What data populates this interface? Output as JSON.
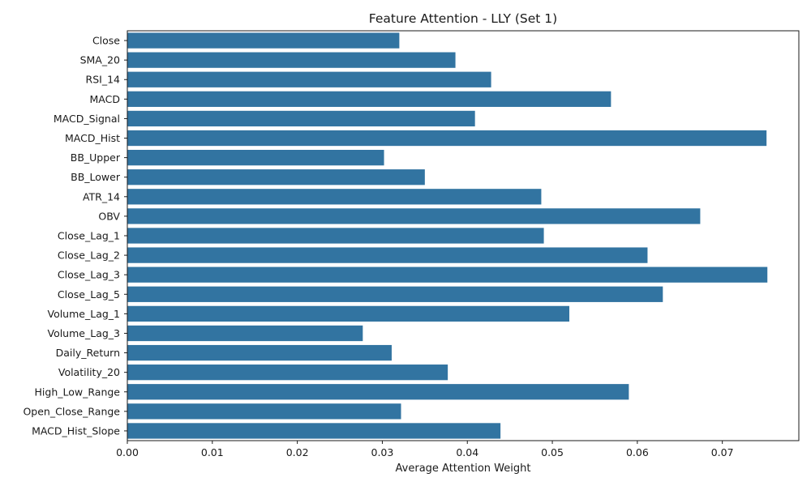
{
  "chart_data": {
    "type": "bar",
    "orientation": "horizontal",
    "title": "Feature Attention - LLY (Set 1)",
    "xlabel": "Average Attention Weight",
    "ylabel": "",
    "xlim": [
      0,
      0.079
    ],
    "xticks": [
      0.0,
      0.01,
      0.02,
      0.03,
      0.04,
      0.05,
      0.06,
      0.07
    ],
    "xtick_labels": [
      "0.00",
      "0.01",
      "0.02",
      "0.03",
      "0.04",
      "0.05",
      "0.06",
      "0.07"
    ],
    "bar_color": "#3274a1",
    "grid": false,
    "categories": [
      "Close",
      "SMA_20",
      "RSI_14",
      "MACD",
      "MACD_Signal",
      "MACD_Hist",
      "BB_Upper",
      "BB_Lower",
      "ATR_14",
      "OBV",
      "Close_Lag_1",
      "Close_Lag_2",
      "Close_Lag_3",
      "Close_Lag_5",
      "Volume_Lag_1",
      "Volume_Lag_3",
      "Daily_Return",
      "Volatility_20",
      "High_Low_Range",
      "Open_Close_Range",
      "MACD_Hist_Slope"
    ],
    "values": [
      0.032,
      0.0386,
      0.0428,
      0.0569,
      0.0409,
      0.0752,
      0.0302,
      0.035,
      0.0487,
      0.0674,
      0.049,
      0.0612,
      0.0753,
      0.063,
      0.052,
      0.0277,
      0.0311,
      0.0377,
      0.059,
      0.0322,
      0.0439
    ]
  }
}
